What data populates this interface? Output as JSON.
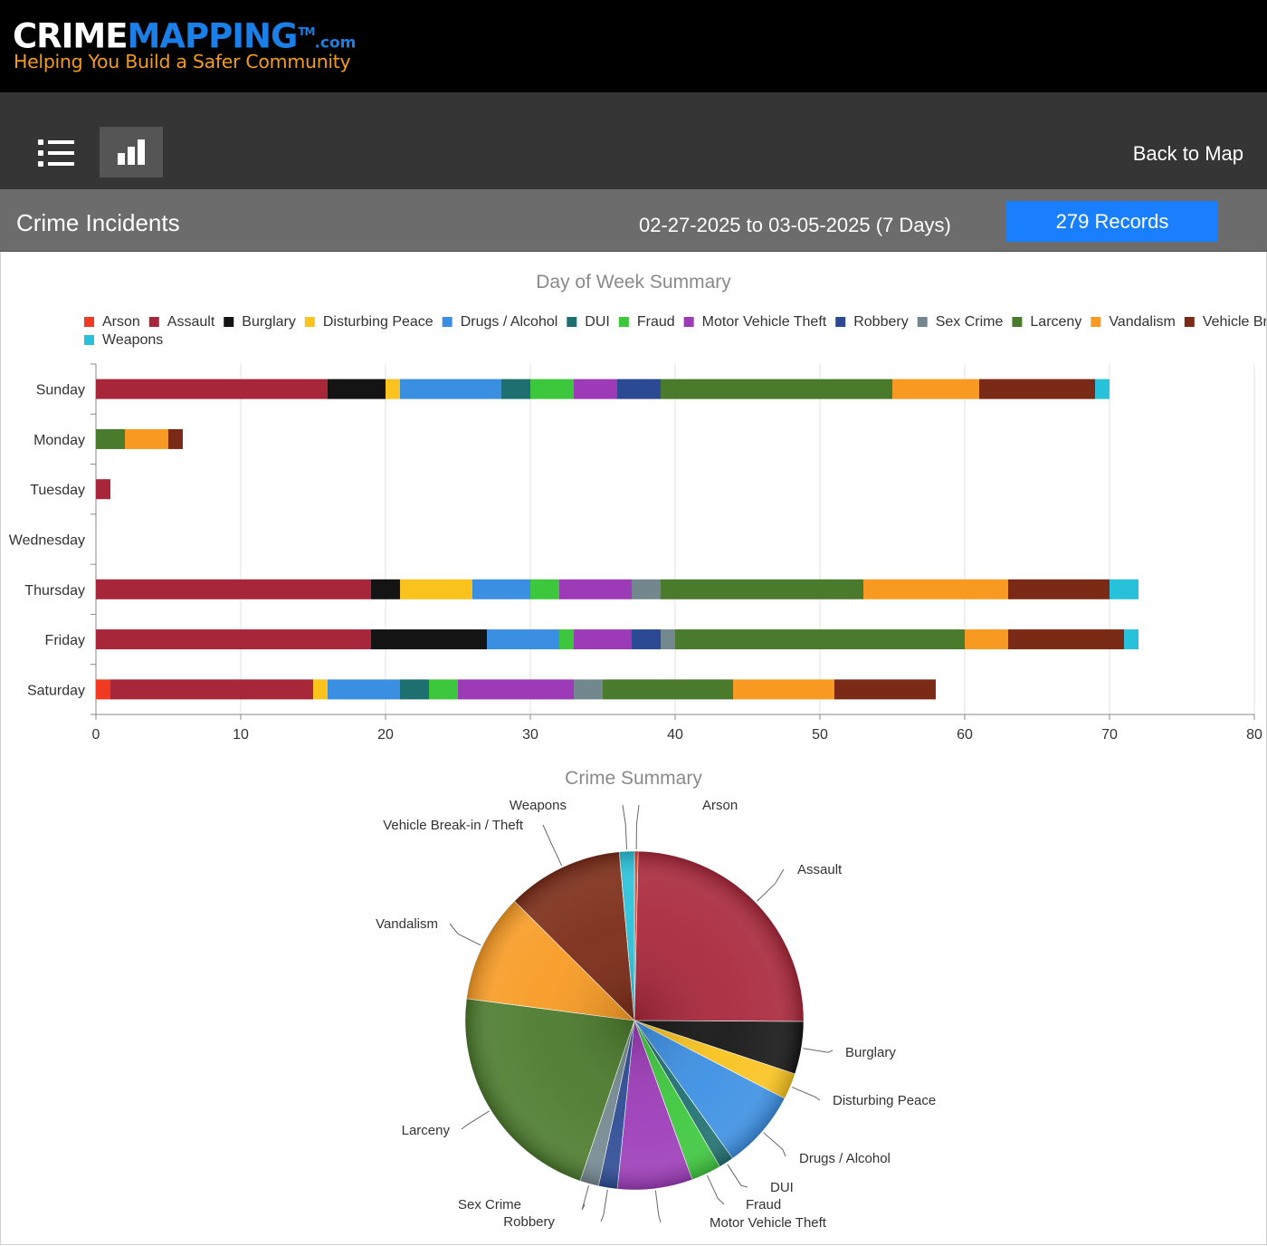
{
  "header": {
    "logo_crime": "CRIME",
    "logo_mapping": "MAPPING",
    "logo_tm": "TM",
    "logo_com": ".com",
    "tagline": "Helping You Build a Safer Community"
  },
  "toolbar": {
    "list_icon": "list-icon",
    "chart_icon": "bar-chart-icon",
    "back_to_map": "Back to Map"
  },
  "title_bar": {
    "title": "Crime Incidents",
    "date_range": "02-27-2025 to 03-05-2025 (7 Days)",
    "records": "279 Records"
  },
  "colors": {
    "Arson": "#f03a22",
    "Assault": "#a8263a",
    "Burglary": "#141414",
    "Disturbing Peace": "#f9c21d",
    "Drugs / Alcohol": "#3b8fe3",
    "DUI": "#1e6f6f",
    "Fraud": "#3cc73c",
    "Motor Vehicle Theft": "#9c3ab8",
    "Robbery": "#2b4a93",
    "Sex Crime": "#73878f",
    "Larceny": "#4a7a2b",
    "Vandalism": "#f89a22",
    "Vehicle Break-in / Theft": "#7a2a15",
    "Weapons": "#27c1d9"
  },
  "chart_data": [
    {
      "type": "bar",
      "orientation": "horizontal",
      "stacked": true,
      "title": "Day of Week Summary",
      "legend_position": "top",
      "categories": [
        "Sunday",
        "Monday",
        "Tuesday",
        "Wednesday",
        "Thursday",
        "Friday",
        "Saturday"
      ],
      "xlim": [
        0,
        80
      ],
      "xticks": [
        0,
        10,
        20,
        30,
        40,
        50,
        60,
        70,
        80
      ],
      "grid": true,
      "series": [
        {
          "name": "Arson",
          "values": [
            0,
            0,
            0,
            0,
            0,
            0,
            1
          ]
        },
        {
          "name": "Assault",
          "values": [
            16,
            0,
            1,
            0,
            19,
            19,
            14
          ]
        },
        {
          "name": "Burglary",
          "values": [
            4,
            0,
            0,
            0,
            2,
            8,
            0
          ]
        },
        {
          "name": "Disturbing Peace",
          "values": [
            1,
            0,
            0,
            0,
            5,
            0,
            1
          ]
        },
        {
          "name": "Drugs / Alcohol",
          "values": [
            7,
            0,
            0,
            0,
            4,
            5,
            5
          ]
        },
        {
          "name": "DUI",
          "values": [
            2,
            0,
            0,
            0,
            0,
            0,
            2
          ]
        },
        {
          "name": "Fraud",
          "values": [
            3,
            0,
            0,
            0,
            2,
            1,
            2
          ]
        },
        {
          "name": "Motor Vehicle Theft",
          "values": [
            3,
            0,
            0,
            0,
            5,
            4,
            8
          ]
        },
        {
          "name": "Robbery",
          "values": [
            3,
            0,
            0,
            0,
            0,
            2,
            0
          ]
        },
        {
          "name": "Sex Crime",
          "values": [
            0,
            0,
            0,
            0,
            2,
            1,
            2
          ]
        },
        {
          "name": "Larceny",
          "values": [
            16,
            2,
            0,
            0,
            14,
            20,
            9
          ]
        },
        {
          "name": "Vandalism",
          "values": [
            6,
            3,
            0,
            0,
            10,
            3,
            7
          ]
        },
        {
          "name": "Vehicle Break-in / Theft",
          "values": [
            8,
            1,
            0,
            0,
            7,
            8,
            7
          ]
        },
        {
          "name": "Weapons",
          "values": [
            1,
            0,
            0,
            0,
            2,
            1,
            0
          ]
        }
      ]
    },
    {
      "type": "pie",
      "title": "Crime Summary",
      "labels": [
        "Arson",
        "Assault",
        "Burglary",
        "Disturbing Peace",
        "Drugs / Alcohol",
        "DUI",
        "Fraud",
        "Motor Vehicle Theft",
        "Robbery",
        "Sex Crime",
        "Larceny",
        "Vandalism",
        "Vehicle Break-in / Theft",
        "Weapons"
      ],
      "values": [
        1,
        69,
        14,
        7,
        21,
        4,
        8,
        20,
        5,
        5,
        61,
        29,
        31,
        4
      ]
    }
  ]
}
